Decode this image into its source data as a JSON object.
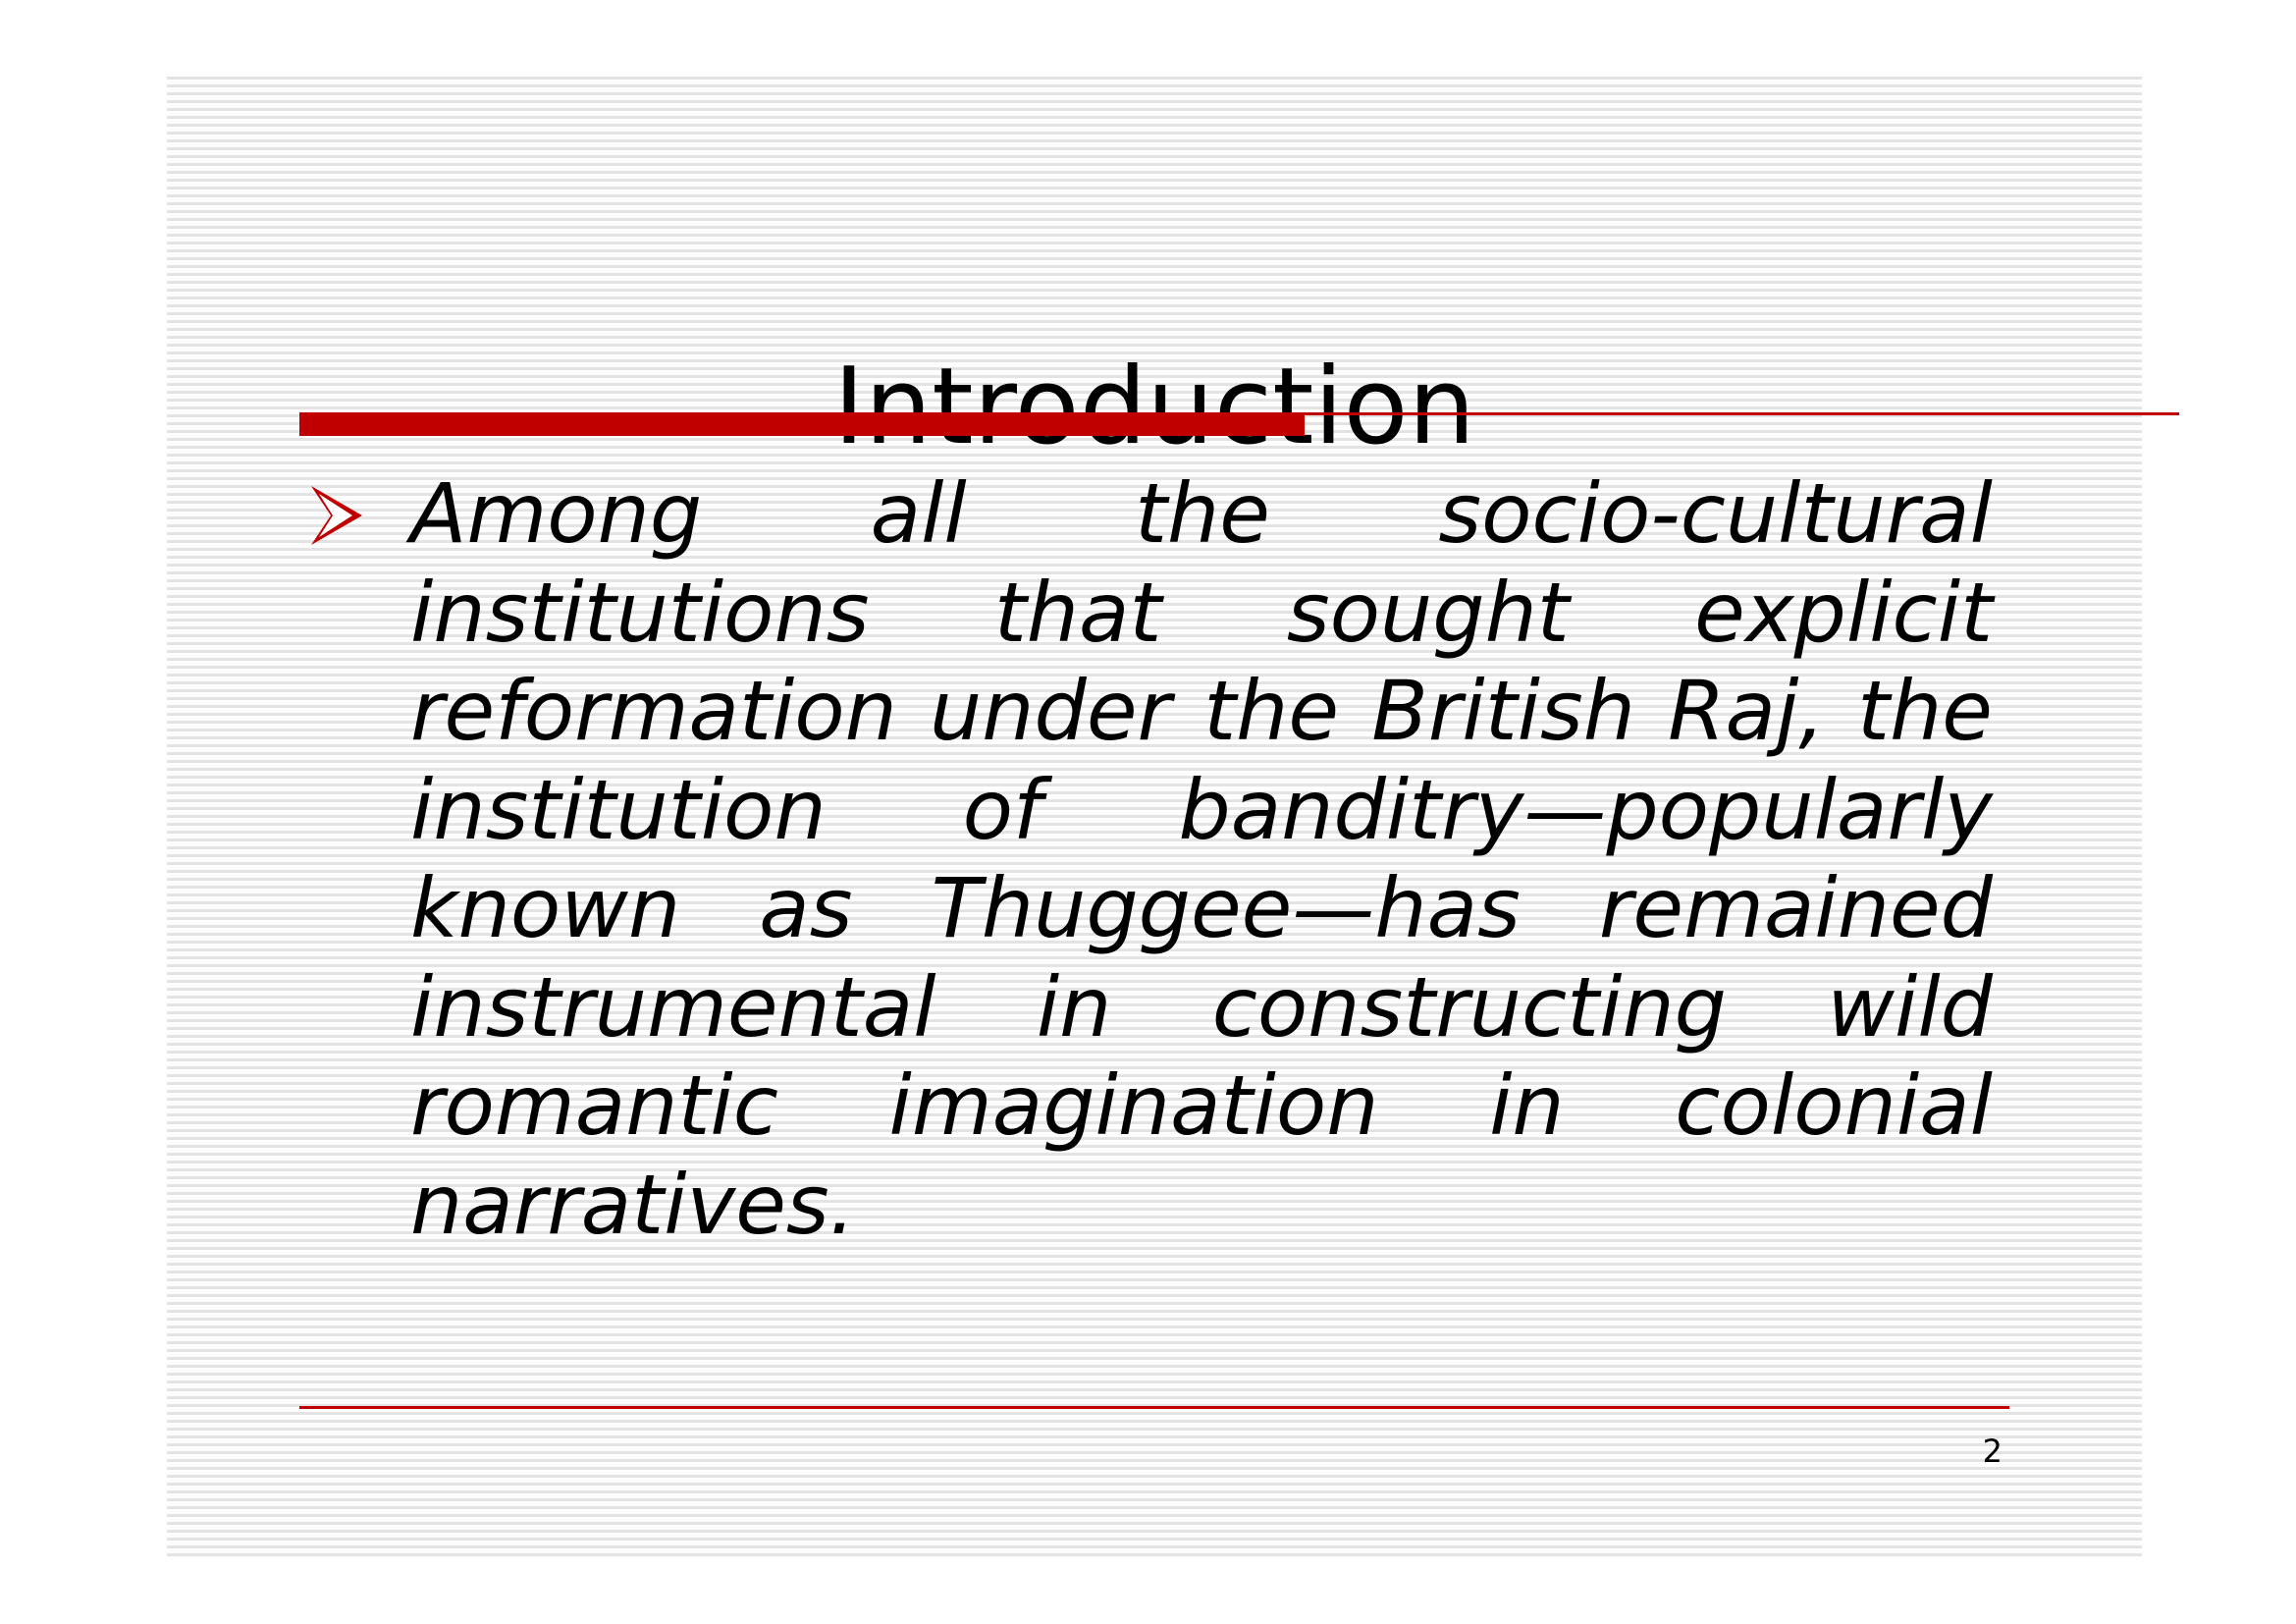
{
  "slide": {
    "title": "Introduction",
    "bullet_icon": "arrowhead-bullet-icon",
    "body": "Among all the socio-cultural institutions that sought explicit reformation under the British Raj, the institution of banditry—popularly known as Thuggee—has remained instrumental in constructing wild romantic imagination in colonial narratives.",
    "page_number": "2"
  },
  "colors": {
    "accent": "#c00000",
    "text": "#000000",
    "stripes": "#e3e3e3"
  }
}
